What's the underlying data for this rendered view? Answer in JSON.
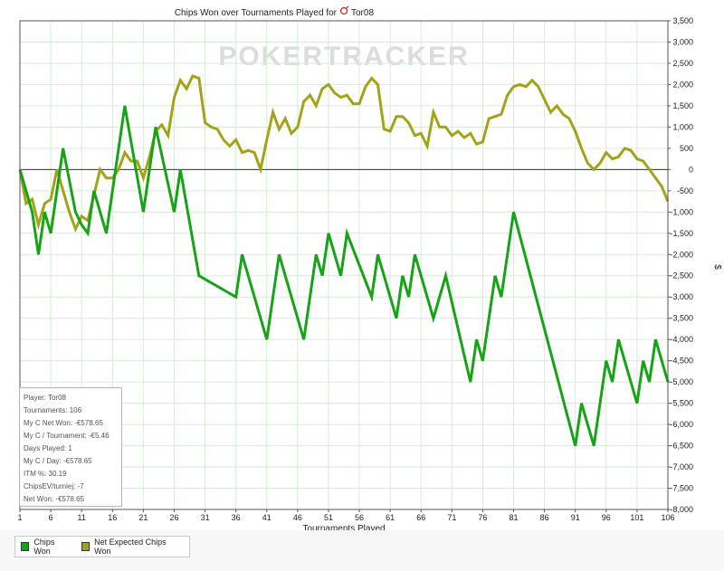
{
  "chart_data": {
    "type": "line",
    "title": "Chips Won over Tournaments Played for",
    "player_name": "Tor08",
    "watermark": "POKERTRACKER",
    "xlabel": "Tournaments Played",
    "ylabel": "$",
    "xlim": [
      1,
      106
    ],
    "ylim": [
      -8000,
      3500
    ],
    "x_ticks": [
      1,
      6,
      11,
      16,
      21,
      26,
      31,
      36,
      41,
      46,
      51,
      56,
      61,
      66,
      71,
      76,
      81,
      86,
      91,
      96,
      101,
      106
    ],
    "y_ticks": [
      3500,
      3000,
      2500,
      2000,
      1500,
      1000,
      500,
      0,
      -500,
      -1000,
      -1500,
      -2000,
      -2500,
      -3000,
      -3500,
      -4000,
      -4500,
      -5000,
      -5500,
      -6000,
      -6500,
      -7000,
      -7500,
      -8000
    ],
    "y_tick_labels": [
      "3,500",
      "3,000",
      "2,500",
      "2,000",
      "1,500",
      "1,000",
      "500",
      "0",
      "-500",
      "-1,000",
      "-1,500",
      "-2,000",
      "-2,500",
      "-3,000",
      "-3,500",
      "-4,000",
      "-4,500",
      "-5,000",
      "-5,500",
      "-6,000",
      "-6,500",
      "-7,000",
      "-7,500",
      "-8,000"
    ],
    "grid": true,
    "series": [
      {
        "name": "Chips Won",
        "color": "#17a317",
        "points": [
          [
            1,
            0
          ],
          [
            2,
            -500
          ],
          [
            3,
            -1000
          ],
          [
            4,
            -2000
          ],
          [
            5,
            -1000
          ],
          [
            6,
            -1500
          ],
          [
            8,
            500
          ],
          [
            10,
            -1000
          ],
          [
            11,
            -1300
          ],
          [
            12,
            -1500
          ],
          [
            13,
            -500
          ],
          [
            15,
            -1500
          ],
          [
            18,
            1500
          ],
          [
            21,
            -1000
          ],
          [
            23,
            1000
          ],
          [
            26,
            -1000
          ],
          [
            27,
            0
          ],
          [
            30,
            -2500
          ],
          [
            36,
            -3000
          ],
          [
            37,
            -2000
          ],
          [
            41,
            -4000
          ],
          [
            43,
            -2000
          ],
          [
            47,
            -4000
          ],
          [
            49,
            -2000
          ],
          [
            50,
            -2500
          ],
          [
            51,
            -1500
          ],
          [
            53,
            -2500
          ],
          [
            54,
            -1500
          ],
          [
            58,
            -3000
          ],
          [
            59,
            -2000
          ],
          [
            62,
            -3500
          ],
          [
            63,
            -2500
          ],
          [
            64,
            -3000
          ],
          [
            65,
            -2000
          ],
          [
            68,
            -3500
          ],
          [
            70,
            -2500
          ],
          [
            74,
            -5000
          ],
          [
            75,
            -4000
          ],
          [
            76,
            -4500
          ],
          [
            78,
            -2500
          ],
          [
            79,
            -3000
          ],
          [
            81,
            -1000
          ],
          [
            91,
            -6500
          ],
          [
            92,
            -5500
          ],
          [
            94,
            -6500
          ],
          [
            96,
            -4500
          ],
          [
            97,
            -5000
          ],
          [
            98,
            -4000
          ],
          [
            101,
            -5500
          ],
          [
            102,
            -4500
          ],
          [
            103,
            -5000
          ],
          [
            104,
            -4000
          ],
          [
            106,
            -5000
          ]
        ]
      },
      {
        "name": "Net Expected Chips Won",
        "color": "#a3a319",
        "points": [
          [
            1,
            0
          ],
          [
            2,
            -800
          ],
          [
            3,
            -700
          ],
          [
            4,
            -1300
          ],
          [
            5,
            -800
          ],
          [
            6,
            -700
          ],
          [
            7,
            0
          ],
          [
            8,
            -500
          ],
          [
            9,
            -1000
          ],
          [
            10,
            -1400
          ],
          [
            11,
            -1100
          ],
          [
            12,
            -1200
          ],
          [
            14,
            0
          ],
          [
            15,
            -200
          ],
          [
            16,
            -200
          ],
          [
            17,
            0
          ],
          [
            18,
            400
          ],
          [
            19,
            200
          ],
          [
            20,
            200
          ],
          [
            21,
            -200
          ],
          [
            22,
            300
          ],
          [
            23,
            900
          ],
          [
            24,
            1050
          ],
          [
            25,
            800
          ],
          [
            26,
            1700
          ],
          [
            27,
            2100
          ],
          [
            28,
            1900
          ],
          [
            29,
            2200
          ],
          [
            30,
            2150
          ],
          [
            31,
            1100
          ],
          [
            32,
            1000
          ],
          [
            33,
            950
          ],
          [
            34,
            700
          ],
          [
            35,
            550
          ],
          [
            36,
            700
          ],
          [
            37,
            400
          ],
          [
            38,
            450
          ],
          [
            39,
            400
          ],
          [
            40,
            0
          ],
          [
            41,
            700
          ],
          [
            42,
            1350
          ],
          [
            43,
            950
          ],
          [
            44,
            1200
          ],
          [
            45,
            850
          ],
          [
            46,
            1000
          ],
          [
            47,
            1600
          ],
          [
            48,
            1750
          ],
          [
            49,
            1500
          ],
          [
            50,
            1900
          ],
          [
            51,
            2000
          ],
          [
            52,
            1800
          ],
          [
            53,
            1700
          ],
          [
            54,
            1750
          ],
          [
            55,
            1550
          ],
          [
            56,
            1550
          ],
          [
            57,
            1950
          ],
          [
            58,
            2150
          ],
          [
            59,
            2000
          ],
          [
            60,
            950
          ],
          [
            61,
            900
          ],
          [
            62,
            1250
          ],
          [
            63,
            1250
          ],
          [
            64,
            1100
          ],
          [
            65,
            800
          ],
          [
            66,
            850
          ],
          [
            67,
            550
          ],
          [
            68,
            1350
          ],
          [
            69,
            1000
          ],
          [
            70,
            1000
          ],
          [
            71,
            800
          ],
          [
            72,
            900
          ],
          [
            73,
            750
          ],
          [
            74,
            850
          ],
          [
            75,
            600
          ],
          [
            76,
            650
          ],
          [
            77,
            1200
          ],
          [
            78,
            1250
          ],
          [
            79,
            1300
          ],
          [
            80,
            1750
          ],
          [
            81,
            1950
          ],
          [
            82,
            2000
          ],
          [
            83,
            1950
          ],
          [
            84,
            2100
          ],
          [
            85,
            1950
          ],
          [
            86,
            1650
          ],
          [
            87,
            1350
          ],
          [
            88,
            1500
          ],
          [
            89,
            1300
          ],
          [
            90,
            1200
          ],
          [
            91,
            900
          ],
          [
            92,
            500
          ],
          [
            93,
            150
          ],
          [
            94,
            0
          ],
          [
            95,
            150
          ],
          [
            96,
            400
          ],
          [
            97,
            250
          ],
          [
            98,
            300
          ],
          [
            99,
            500
          ],
          [
            100,
            450
          ],
          [
            101,
            250
          ],
          [
            102,
            200
          ],
          [
            103,
            0
          ],
          [
            104,
            -200
          ],
          [
            105,
            -400
          ],
          [
            106,
            -750
          ]
        ]
      }
    ],
    "legend": [
      "Chips Won",
      "Net Expected Chips Won"
    ],
    "legend_position": "bottom-left",
    "stats": [
      "Player: Tor08",
      "Tournaments: 106",
      "My C Net Won: -€578.65",
      "My C / Tournament: -€5.46",
      "Days Played: 1",
      "My C / Day: -€578.65",
      "ITM %: 30.19",
      "ChipsEV/turniej: -7",
      "Net Won: -€578.65"
    ]
  }
}
